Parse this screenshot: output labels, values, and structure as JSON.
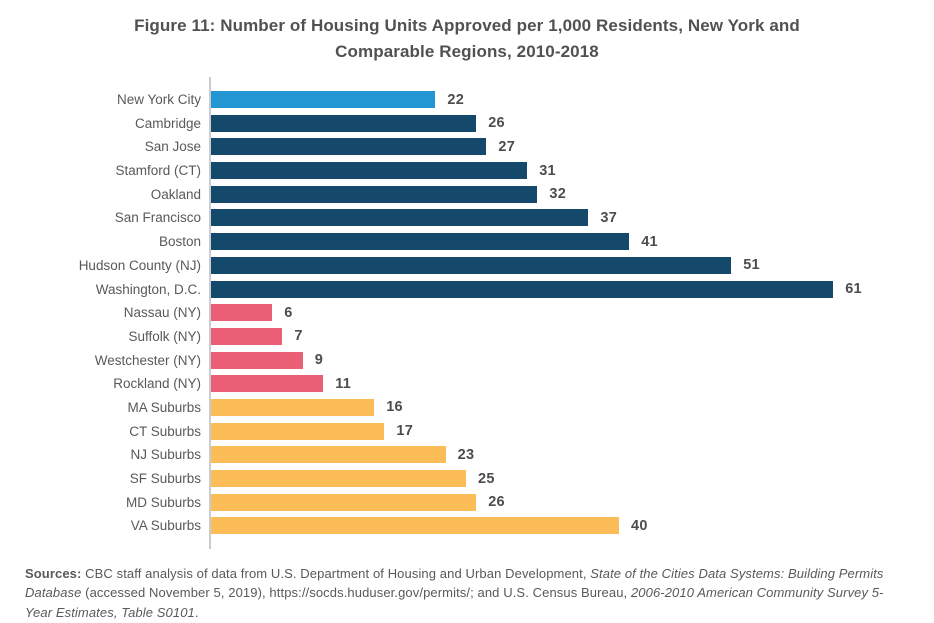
{
  "figure": {
    "title": "Figure 11: Number of Housing Units Approved per 1,000 Residents, New York and Comparable Regions, 2010-2018"
  },
  "chart_data": {
    "type": "bar",
    "orientation": "horizontal",
    "title": "Figure 11: Number of Housing Units Approved per 1,000 Residents, New York and Comparable Regions, 2010-2018",
    "xlabel": "",
    "ylabel": "",
    "xlim": [
      0,
      61
    ],
    "grid": false,
    "legend": "none",
    "value_labels": "outside-end",
    "group_colors": {
      "new_york_city": "#2196d3",
      "comparable_cities": "#15496b",
      "ny_suburban_counties": "#ea5e76",
      "comparable_suburbs": "#fcbd59"
    },
    "bars": [
      {
        "label": "New York City",
        "value": 22,
        "group": "new_york_city",
        "color": "#2196d3"
      },
      {
        "label": "Cambridge",
        "value": 26,
        "group": "comparable_cities",
        "color": "#15496b"
      },
      {
        "label": "San Jose",
        "value": 27,
        "group": "comparable_cities",
        "color": "#15496b"
      },
      {
        "label": "Stamford (CT)",
        "value": 31,
        "group": "comparable_cities",
        "color": "#15496b"
      },
      {
        "label": "Oakland",
        "value": 32,
        "group": "comparable_cities",
        "color": "#15496b"
      },
      {
        "label": "San Francisco",
        "value": 37,
        "group": "comparable_cities",
        "color": "#15496b"
      },
      {
        "label": "Boston",
        "value": 41,
        "group": "comparable_cities",
        "color": "#15496b"
      },
      {
        "label": "Hudson County (NJ)",
        "value": 51,
        "group": "comparable_cities",
        "color": "#15496b"
      },
      {
        "label": "Washington, D.C.",
        "value": 61,
        "group": "comparable_cities",
        "color": "#15496b"
      },
      {
        "label": "Nassau (NY)",
        "value": 6,
        "group": "ny_suburban_counties",
        "color": "#ea5e76"
      },
      {
        "label": "Suffolk (NY)",
        "value": 7,
        "group": "ny_suburban_counties",
        "color": "#ea5e76"
      },
      {
        "label": "Westchester (NY)",
        "value": 9,
        "group": "ny_suburban_counties",
        "color": "#ea5e76"
      },
      {
        "label": "Rockland (NY)",
        "value": 11,
        "group": "ny_suburban_counties",
        "color": "#ea5e76"
      },
      {
        "label": "MA Suburbs",
        "value": 16,
        "group": "comparable_suburbs",
        "color": "#fcbd59"
      },
      {
        "label": "CT Suburbs",
        "value": 17,
        "group": "comparable_suburbs",
        "color": "#fcbd59"
      },
      {
        "label": "NJ Suburbs",
        "value": 23,
        "group": "comparable_suburbs",
        "color": "#fcbd59"
      },
      {
        "label": "SF Suburbs",
        "value": 25,
        "group": "comparable_suburbs",
        "color": "#fcbd59"
      },
      {
        "label": "MD Suburbs",
        "value": 26,
        "group": "comparable_suburbs",
        "color": "#fcbd59"
      },
      {
        "label": "VA Suburbs",
        "value": 40,
        "group": "comparable_suburbs",
        "color": "#fcbd59"
      }
    ]
  },
  "sources": {
    "segments": [
      {
        "text": "Sources: ",
        "style": "bold"
      },
      {
        "text": "CBC staff analysis of data from U.S. Department of Housing and Urban Development, ",
        "style": "normal"
      },
      {
        "text": "State of the Cities Data Systems: Building Permits Database ",
        "style": "italic"
      },
      {
        "text": "(accessed November 5, 2019),  https://socds.huduser.gov/permits/; and U.S. Census Bureau, ",
        "style": "normal"
      },
      {
        "text": "2006-2010 American Community Survey 5-Year Estimates, Table S0101",
        "style": "italic"
      },
      {
        "text": ".",
        "style": "normal"
      }
    ]
  }
}
